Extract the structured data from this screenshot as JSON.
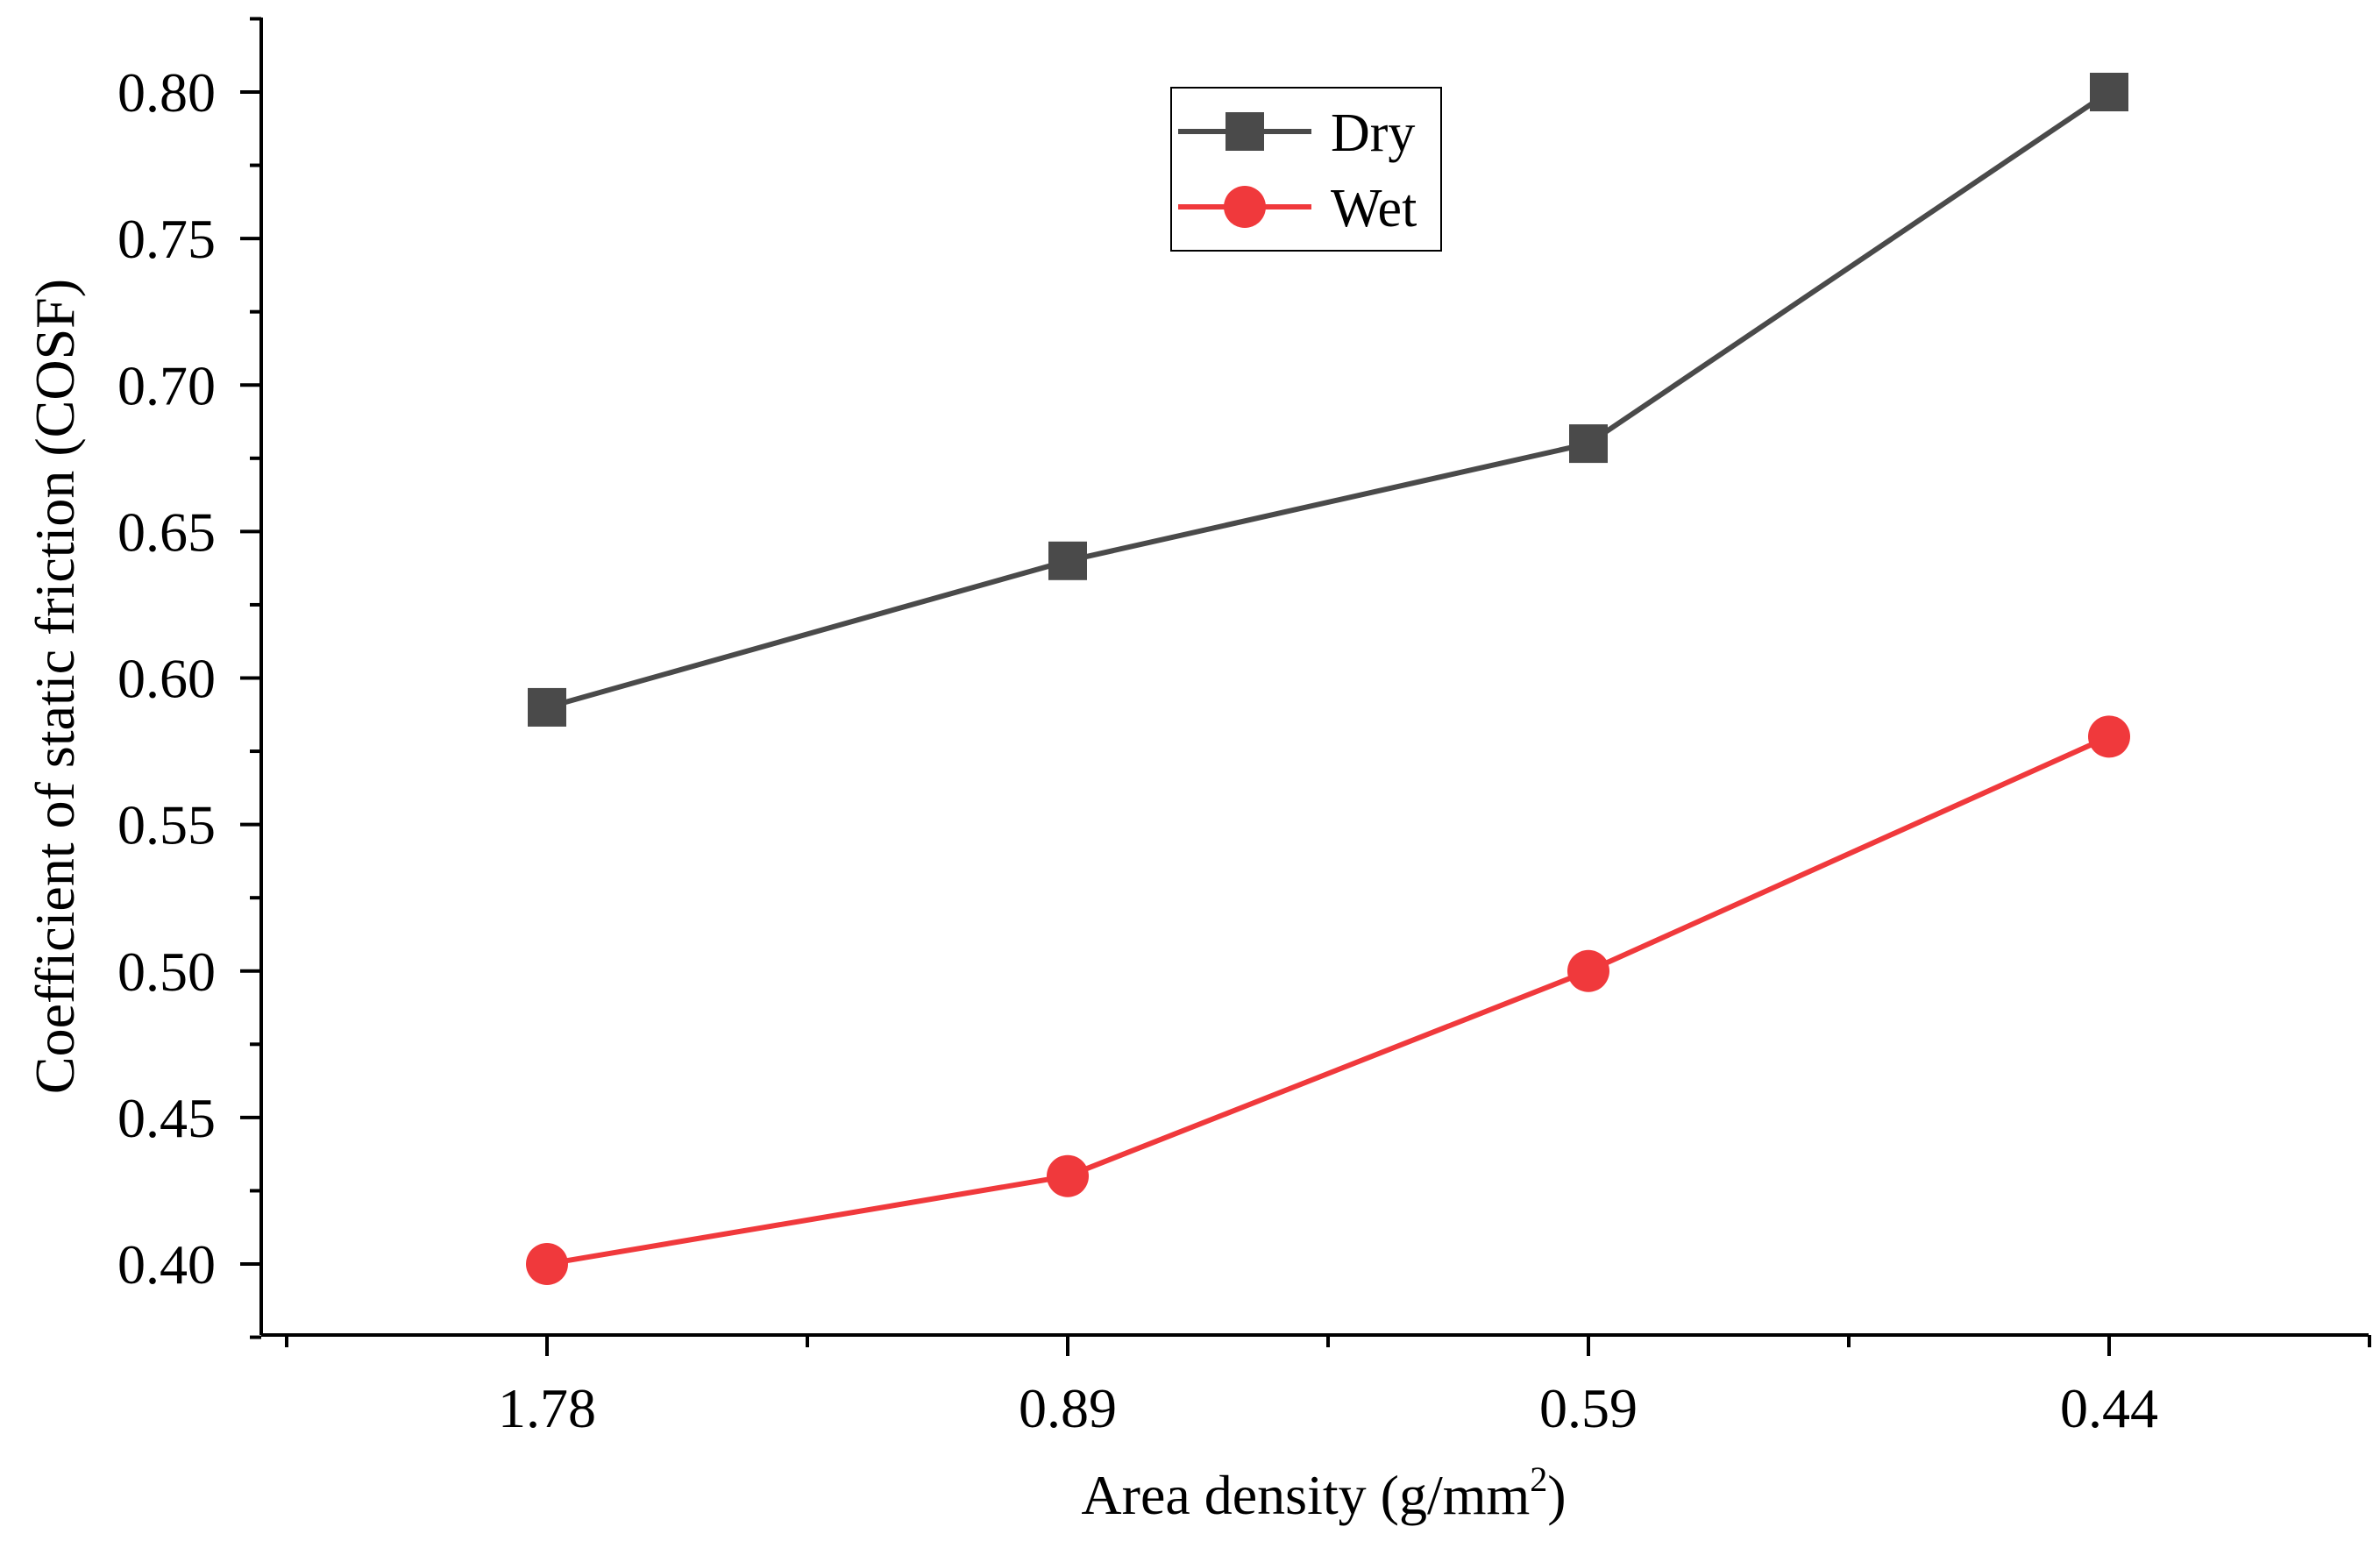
{
  "chart_data": {
    "type": "line",
    "title": "",
    "categories": [
      "1.78",
      "0.89",
      "0.59",
      "0.44"
    ],
    "xlabel": "Area density (g/mm",
    "xlabel_superscript": "2",
    "xlabel_suffix": ")",
    "ylabel": "Coefficient of static friction (COSF)",
    "ylim": [
      0.375,
      0.825
    ],
    "yticks": [
      0.4,
      0.45,
      0.5,
      0.55,
      0.6,
      0.65,
      0.7,
      0.75,
      0.8
    ],
    "ytick_labels": [
      "0.40",
      "0.45",
      "0.50",
      "0.55",
      "0.60",
      "0.65",
      "0.70",
      "0.75",
      "0.80"
    ],
    "grid": false,
    "legend_position": "top-center",
    "series": [
      {
        "name": "Dry",
        "marker": "square",
        "color": "#4a4a4a",
        "values": [
          0.59,
          0.64,
          0.68,
          0.8
        ]
      },
      {
        "name": "Wet",
        "marker": "circle",
        "color": "#f0393c",
        "values": [
          0.4,
          0.43,
          0.5,
          0.58
        ]
      }
    ]
  }
}
